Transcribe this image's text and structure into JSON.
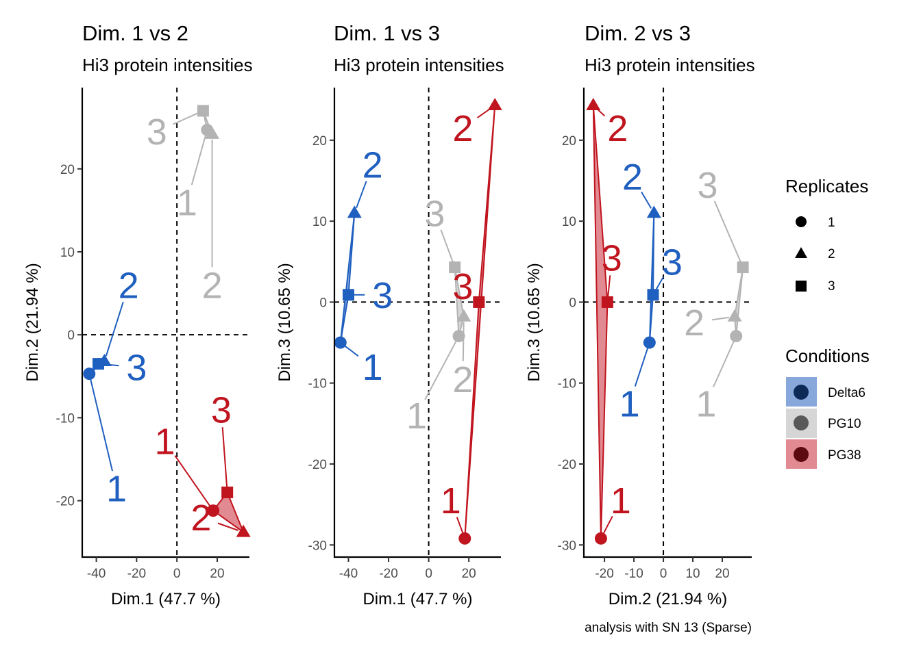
{
  "caption": "analysis with SN 13 (Sparse)",
  "colors": {
    "Delta6": "#1f5fbf",
    "PG10": "#b3b3b3",
    "PG38": "#c0141e",
    "Delta6_fill": "#88a8dc",
    "PG10_fill": "#d6d6d6",
    "PG38_fill": "#e18a91"
  },
  "legend": {
    "replicates_title": "Replicates",
    "replicates": [
      "1",
      "2",
      "3"
    ],
    "conditions_title": "Conditions",
    "conditions": [
      "Delta6",
      "PG10",
      "PG38"
    ]
  },
  "chart_data": [
    {
      "type": "scatter",
      "title": "Dim. 1 vs 2",
      "subtitle": "Hi3 protein intensities",
      "xlabel": "Dim.1 (47.7 %)",
      "ylabel": "Dim.2 (21.94 %)",
      "xlim": [
        -47,
        36
      ],
      "ylim": [
        -26.8,
        29.8
      ],
      "xticks": [
        -40,
        -20,
        0,
        20
      ],
      "yticks": [
        -20,
        -10,
        0,
        10,
        20
      ],
      "series": [
        {
          "name": "Delta6",
          "points": [
            {
              "replicate": "1",
              "x": -43.5,
              "y": -4.7,
              "label_x": -30,
              "label_y": -18.5
            },
            {
              "replicate": "2",
              "x": -36,
              "y": -3.2,
              "label_x": -24,
              "label_y": 6
            },
            {
              "replicate": "3",
              "x": -39,
              "y": -3.5,
              "label_x": -20,
              "label_y": -3.9
            }
          ]
        },
        {
          "name": "PG10",
          "points": [
            {
              "replicate": "1",
              "x": 15,
              "y": 24.7,
              "label_x": 5,
              "label_y": 16
            },
            {
              "replicate": "2",
              "x": 17.5,
              "y": 24.2,
              "label_x": 17.5,
              "label_y": 6
            },
            {
              "replicate": "3",
              "x": 13,
              "y": 27,
              "label_x": -10,
              "label_y": 24.5
            }
          ]
        },
        {
          "name": "PG38",
          "points": [
            {
              "replicate": "1",
              "x": 18,
              "y": -21.2,
              "label_x": -6,
              "label_y": -12.8
            },
            {
              "replicate": "2",
              "x": 33,
              "y": -23.8,
              "label_x": 12,
              "label_y": -22
            },
            {
              "replicate": "3",
              "x": 25,
              "y": -19,
              "label_x": 22,
              "label_y": -9
            }
          ]
        }
      ]
    },
    {
      "type": "scatter",
      "title": "Dim. 1 vs 3",
      "subtitle": "Hi3 protein intensities",
      "xlabel": "Dim.1 (47.7 %)",
      "ylabel": "Dim.3 (10.65 %)",
      "xlim": [
        -47,
        36
      ],
      "ylim": [
        -31.5,
        26.5
      ],
      "xticks": [
        -40,
        -20,
        0,
        20
      ],
      "yticks": [
        -30,
        -20,
        -10,
        0,
        10,
        20
      ],
      "series": [
        {
          "name": "Delta6",
          "points": [
            {
              "replicate": "1",
              "x": -44,
              "y": -5,
              "label_x": -28,
              "label_y": -8
            },
            {
              "replicate": "2",
              "x": -37,
              "y": 11,
              "label_x": -28,
              "label_y": 17
            },
            {
              "replicate": "3",
              "x": -40,
              "y": 0.9,
              "label_x": -23,
              "label_y": 0.9
            }
          ]
        },
        {
          "name": "PG10",
          "points": [
            {
              "replicate": "1",
              "x": 15,
              "y": -4.2,
              "label_x": -6,
              "label_y": -14
            },
            {
              "replicate": "2",
              "x": 17.5,
              "y": -1.8,
              "label_x": 17,
              "label_y": -9.5
            },
            {
              "replicate": "3",
              "x": 13,
              "y": 4.3,
              "label_x": 3,
              "label_y": 11
            }
          ]
        },
        {
          "name": "PG38",
          "points": [
            {
              "replicate": "1",
              "x": 18,
              "y": -29.2,
              "label_x": 11,
              "label_y": -24.5
            },
            {
              "replicate": "2",
              "x": 33,
              "y": 24.3,
              "label_x": 17,
              "label_y": 21.5
            },
            {
              "replicate": "3",
              "x": 25,
              "y": 0,
              "label_x": 17,
              "label_y": 2
            }
          ]
        }
      ]
    },
    {
      "type": "scatter",
      "title": "Dim. 2 vs 3",
      "subtitle": "Hi3 protein intensities",
      "xlabel": "Dim.2 (21.94 %)",
      "ylabel": "Dim.3 (10.65 %)",
      "xlim": [
        -27,
        30
      ],
      "ylim": [
        -31.5,
        26.5
      ],
      "xticks": [
        -20,
        -10,
        0,
        10,
        20
      ],
      "yticks": [
        -30,
        -20,
        -10,
        0,
        10,
        20
      ],
      "series": [
        {
          "name": "Delta6",
          "points": [
            {
              "replicate": "1",
              "x": -4.7,
              "y": -5,
              "label_x": -11.5,
              "label_y": -12.5
            },
            {
              "replicate": "2",
              "x": -3.2,
              "y": 11,
              "label_x": -10.5,
              "label_y": 15.5
            },
            {
              "replicate": "3",
              "x": -3.5,
              "y": 0.9,
              "label_x": 3,
              "label_y": 5
            }
          ]
        },
        {
          "name": "PG10",
          "points": [
            {
              "replicate": "1",
              "x": 24.7,
              "y": -4.2,
              "label_x": 14.5,
              "label_y": -12.5
            },
            {
              "replicate": "2",
              "x": 24.2,
              "y": -1.8,
              "label_x": 10.5,
              "label_y": -2.5
            },
            {
              "replicate": "3",
              "x": 27,
              "y": 4.3,
              "label_x": 15,
              "label_y": 14.5
            }
          ]
        },
        {
          "name": "PG38",
          "points": [
            {
              "replicate": "1",
              "x": -21.2,
              "y": -29.2,
              "label_x": -14.5,
              "label_y": -24.5
            },
            {
              "replicate": "2",
              "x": -23.8,
              "y": 24.3,
              "label_x": -15.5,
              "label_y": 21.5
            },
            {
              "replicate": "3",
              "x": -19,
              "y": 0,
              "label_x": -17.5,
              "label_y": 5.5
            }
          ]
        }
      ]
    }
  ]
}
